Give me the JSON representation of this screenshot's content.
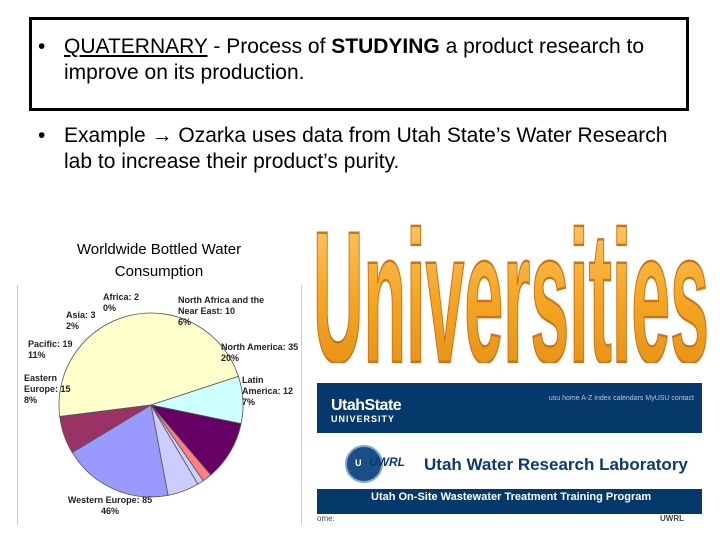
{
  "bullets": {
    "b1_keyword": "QUATERNARY",
    "b1_mid": " - Process of ",
    "b1_bold": "STUDYING",
    "b1_rest": " a product research to improve on its production.",
    "b2_start": "Example ",
    "b2_arrow": "→",
    "b2_rest": " Ozarka uses data from Utah State’s Water Research lab to increase their product’s purity."
  },
  "bullet_glyph": "•",
  "chart_caption": "Worldwide Bottled Water Consumption",
  "chart_data": {
    "type": "pie",
    "title": "Worldwide Bottled Water Consumption",
    "slices": [
      {
        "name": "Western Europe",
        "value": 85,
        "percent": "46%",
        "color": "#ffffcc"
      },
      {
        "name": "Eastern Europe",
        "value": 15,
        "percent": "8%",
        "color": "#ccffff"
      },
      {
        "name": "Pacific",
        "value": 19,
        "percent": "11%",
        "color": "#660066"
      },
      {
        "name": "Asia",
        "value": 3,
        "percent": "2%",
        "color": "#ff8080"
      },
      {
        "name": "Africa",
        "value": 2,
        "percent": "0%",
        "color": "#ccccff"
      },
      {
        "name": "North Africa and the Near East",
        "value": 10,
        "percent": "6%",
        "color": "#ccccff"
      },
      {
        "name": "North America",
        "value": 35,
        "percent": "20%",
        "color": "#9999ff"
      },
      {
        "name": "Latin America",
        "value": 12,
        "percent": "7%",
        "color": "#993366"
      }
    ],
    "labels": [
      {
        "lines": [
          "Western Europe: 85",
          "46%"
        ]
      },
      {
        "lines": [
          "Eastern",
          "Europe: 15",
          "8%"
        ]
      },
      {
        "lines": [
          "Pacific: 19",
          "11%"
        ]
      },
      {
        "lines": [
          "Asia: 3",
          "2%"
        ]
      },
      {
        "lines": [
          "Africa: 2",
          "0%"
        ]
      },
      {
        "lines": [
          "North Africa and the",
          "Near East: 10",
          "6%"
        ]
      },
      {
        "lines": [
          "North America: 35",
          "20%"
        ]
      },
      {
        "lines": [
          "Latin",
          "America: 12",
          "7%"
        ]
      }
    ]
  },
  "word_art": "Universities",
  "website": {
    "logo_main": "UtahState",
    "logo_sub": "UNIVERSITY",
    "nav": "usu home  A-Z index  calendars  MyUSU  contact",
    "seal_text": "U",
    "seal_label": "UWRL",
    "lab_name": "Utah Water Research Laboratory",
    "program": "Utah On-Site Wastewater Treatment Training Program",
    "home_text": "ome:",
    "footer": "UWRL"
  },
  "colors": {
    "word_art_fill": "#f5a623",
    "word_art_outline": "#c9751a",
    "site_navy": "#06396b"
  }
}
